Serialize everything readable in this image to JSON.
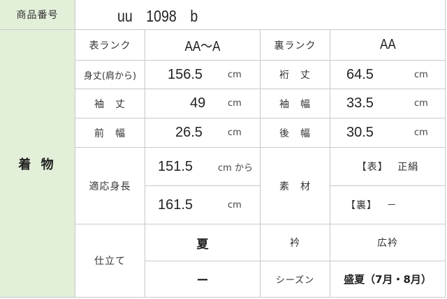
{
  "product": {
    "label": "商品番号",
    "value": "uu　1098　b"
  },
  "category": "着 物",
  "rows": {
    "omote_rank": {
      "label": "表ランク",
      "value": "AA〜A"
    },
    "ura_rank": {
      "label": "裏ランク",
      "value": "AA"
    },
    "mitake": {
      "label": "身丈(肩から)",
      "value": "156.5",
      "unit": "cm"
    },
    "yuki": {
      "label": "裄　丈",
      "value": "64.5",
      "unit": "cm"
    },
    "sodetake": {
      "label": "袖　丈",
      "value": "49",
      "unit": "cm"
    },
    "sodehaba": {
      "label": "袖　幅",
      "value": "33.5",
      "unit": "cm"
    },
    "maehaba": {
      "label": "前　幅",
      "value": "26.5",
      "unit": "cm"
    },
    "ushirohaba": {
      "label": "後　幅",
      "value": "30.5",
      "unit": "cm"
    },
    "height": {
      "label": "適応身長",
      "from": "151.5",
      "from_unit": "cm から",
      "to": "161.5",
      "to_unit": "cm"
    },
    "material": {
      "label": "素　材",
      "omote": "【表】　 正絹",
      "ura": "【裏】　 －"
    },
    "shitate": {
      "label": "仕立て",
      "value1": "夏",
      "value2": "ー"
    },
    "eri": {
      "label": "衿",
      "value": "広衿"
    },
    "season": {
      "label": "シーズン",
      "value": "盛夏（7月・8月）"
    }
  },
  "colors": {
    "label_bg": "#e2efd9",
    "border": "#c8c8c8"
  }
}
